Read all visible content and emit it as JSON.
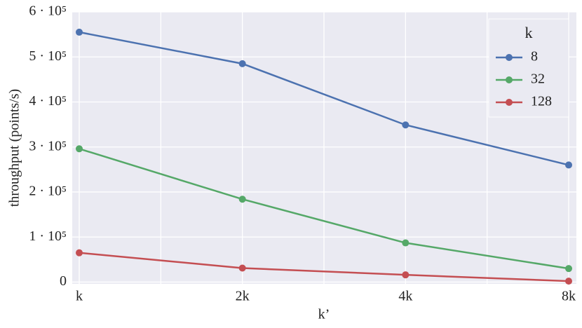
{
  "chart_data": {
    "type": "line",
    "x_label": "k’",
    "y_label": "throughput (points/s)",
    "categories": [
      "k",
      "2k",
      "4k",
      "8k"
    ],
    "series": [
      {
        "name": "8",
        "color": "#4c72b0",
        "values": [
          555000,
          485000,
          349000,
          260000
        ]
      },
      {
        "name": "32",
        "color": "#55a868",
        "values": [
          296000,
          184000,
          87000,
          30000
        ]
      },
      {
        "name": "128",
        "color": "#c44e52",
        "values": [
          65000,
          31000,
          16000,
          2000
        ]
      }
    ],
    "legend_title": "k",
    "legend_position": "upper right",
    "ylim": [
      -4000,
      600000
    ],
    "yticks": [
      0,
      {
        "value": 100000,
        "label": "1 · 10⁵"
      },
      {
        "value": 200000,
        "label": "2 · 10⁵"
      },
      {
        "value": 300000,
        "label": "3 · 10⁵"
      },
      {
        "value": 400000,
        "label": "4 · 10⁵"
      },
      {
        "value": 500000,
        "label": "5 · 10⁵"
      },
      {
        "value": 600000,
        "label": "6 · 10⁵"
      }
    ],
    "grid": true
  }
}
